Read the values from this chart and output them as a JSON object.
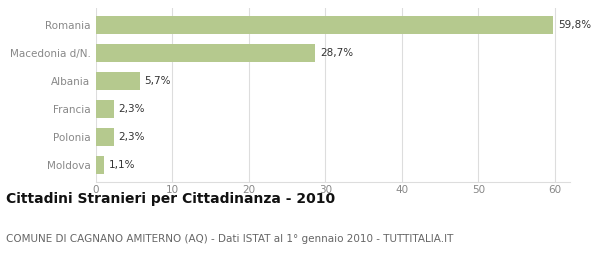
{
  "categories": [
    "Moldova",
    "Polonia",
    "Francia",
    "Albania",
    "Macedonia d/N.",
    "Romania"
  ],
  "values": [
    1.1,
    2.3,
    2.3,
    5.7,
    28.7,
    59.8
  ],
  "labels": [
    "1,1%",
    "2,3%",
    "2,3%",
    "5,7%",
    "28,7%",
    "59,8%"
  ],
  "bar_color": "#b5c98e",
  "background_color": "#ffffff",
  "title": "Cittadini Stranieri per Cittadinanza - 2010",
  "subtitle": "COMUNE DI CAGNANO AMITERNO (AQ) - Dati ISTAT al 1° gennaio 2010 - TUTTITALIA.IT",
  "xlim": [
    0,
    62
  ],
  "xticks": [
    0,
    10,
    20,
    30,
    40,
    50,
    60
  ],
  "title_fontsize": 10,
  "subtitle_fontsize": 7.5,
  "label_fontsize": 7.5,
  "tick_fontsize": 7.5,
  "ytick_color": "#888888",
  "xtick_color": "#888888",
  "grid_color": "#dddddd",
  "text_color": "#333333",
  "bar_height": 0.65
}
